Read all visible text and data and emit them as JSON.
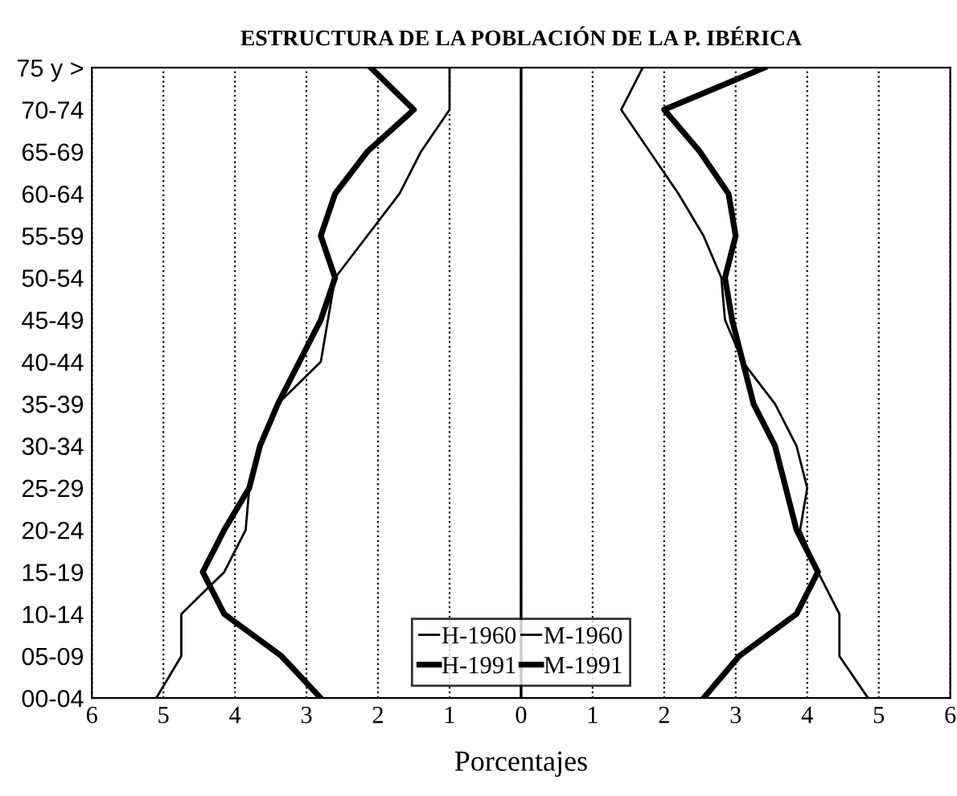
{
  "chart_data": {
    "type": "line",
    "orientation": "horizontal",
    "title": "ESTRUCTURA DE LA POBLACIÓN DE LA P. IBÉRICA",
    "xlabel": "Porcentajes",
    "categories": [
      "75 y >",
      "70-74",
      "65-69",
      "60-64",
      "55-59",
      "50-54",
      "45-49",
      "40-44",
      "35-39",
      "30-34",
      "25-29",
      "20-24",
      "15-19",
      "10-14",
      "05-09",
      "00-04"
    ],
    "series": [
      {
        "name": "H-1960",
        "color": "#000000",
        "values": [
          -1.0,
          -1.0,
          -1.4,
          -1.7,
          -2.15,
          -2.6,
          -2.7,
          -2.8,
          -3.4,
          -3.65,
          -3.8,
          -3.85,
          -4.15,
          -4.75,
          -4.75,
          -5.1
        ]
      },
      {
        "name": "M-1960",
        "color": "#000000",
        "values": [
          1.7,
          1.4,
          1.8,
          2.2,
          2.55,
          2.8,
          2.85,
          3.1,
          3.55,
          3.85,
          4.0,
          3.9,
          4.15,
          4.45,
          4.45,
          4.85
        ]
      },
      {
        "name": "H-1991",
        "color": "#000000",
        "values": [
          -2.1,
          -1.5,
          -2.15,
          -2.6,
          -2.8,
          -2.6,
          -2.8,
          -3.1,
          -3.4,
          -3.65,
          -3.8,
          -4.15,
          -4.45,
          -4.15,
          -3.35,
          -2.8
        ]
      },
      {
        "name": "M-1991",
        "color": "#000000",
        "values": [
          3.4,
          2.0,
          2.5,
          2.9,
          3.0,
          2.85,
          2.95,
          3.1,
          3.25,
          3.55,
          3.7,
          3.85,
          4.15,
          3.85,
          3.05,
          2.55
        ]
      }
    ],
    "xlim": [
      -6,
      6
    ],
    "xticks": [
      {
        "value": -6,
        "label": "6"
      },
      {
        "value": -5,
        "label": "5"
      },
      {
        "value": -4,
        "label": "4"
      },
      {
        "value": -3,
        "label": "3"
      },
      {
        "value": -2,
        "label": "2"
      },
      {
        "value": -1,
        "label": "1"
      },
      0,
      1,
      2,
      3,
      4,
      5,
      6
    ],
    "ref_lines": [
      {
        "axis": "x",
        "value": 0,
        "color": "#000000",
        "line_style": "solid"
      }
    ],
    "grid": "x",
    "legend": "bottom",
    "marker": "none",
    "line_style": "solid"
  }
}
